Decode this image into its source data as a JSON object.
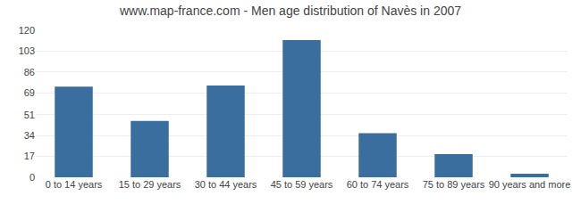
{
  "chart_data": {
    "type": "bar",
    "title": "www.map-france.com - Men age distribution of Navès in 2007",
    "categories": [
      "0 to 14 years",
      "15 to 29 years",
      "30 to 44 years",
      "45 to 59 years",
      "60 to 74 years",
      "75 to 89 years",
      "90 years and more"
    ],
    "values": [
      74,
      46,
      75,
      112,
      36,
      19,
      3
    ],
    "color": "#3a6e9e",
    "ylim": [
      0,
      120
    ],
    "yticks": [
      0,
      17,
      34,
      51,
      69,
      86,
      103,
      120
    ],
    "grid": true
  }
}
